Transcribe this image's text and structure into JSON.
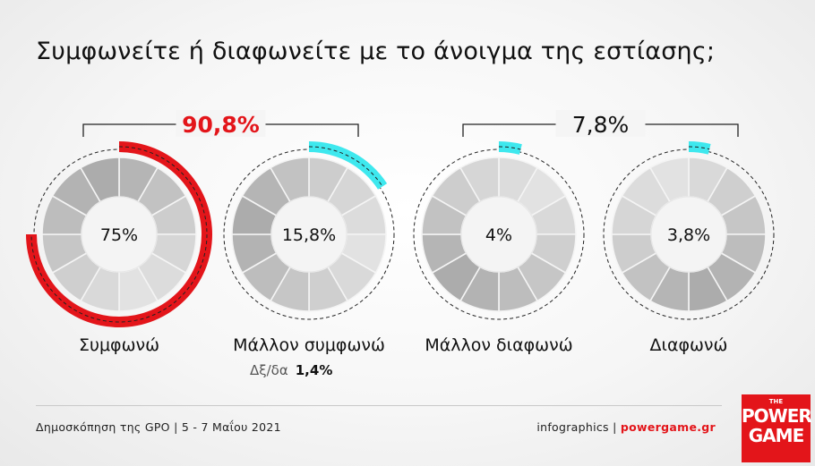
{
  "title": "Συμφωνείτε ή διαφωνείτε με το άνοιγμα της εστίασης;",
  "colors": {
    "agree": "#e3151a",
    "somewhat_agree": "#3ee8ee",
    "disagree_marker": "#3ee8ee",
    "track": "#d8d8d8"
  },
  "chart_data": {
    "type": "pie",
    "title": "Συμφωνείτε ή διαφωνείτε με το άνοιγμα της εστίασης;",
    "categories": [
      "Συμφωνώ",
      "Μάλλον συμφωνώ",
      "Μάλλον διαφωνώ",
      "Διαφωνώ"
    ],
    "values": [
      75,
      15.8,
      4,
      3.8
    ],
    "value_labels": [
      "75%",
      "15,8%",
      "4%",
      "3,8%"
    ],
    "groups": [
      {
        "label": "90,8%",
        "members": [
          0,
          1
        ]
      },
      {
        "label": "7,8%",
        "members": [
          2,
          3
        ]
      }
    ],
    "other": {
      "label": "Δξ/δα",
      "value_label": "1,4%",
      "value": 1.4
    }
  },
  "footer": {
    "survey": "Δημοσκόπηση της GPO | 5 - 7 Μαΐου 2021",
    "credit_prefix": "infographics | ",
    "credit_site": "powergame.gr"
  },
  "logo": {
    "the": "THE",
    "power": "POWER",
    "game": "GAME"
  }
}
